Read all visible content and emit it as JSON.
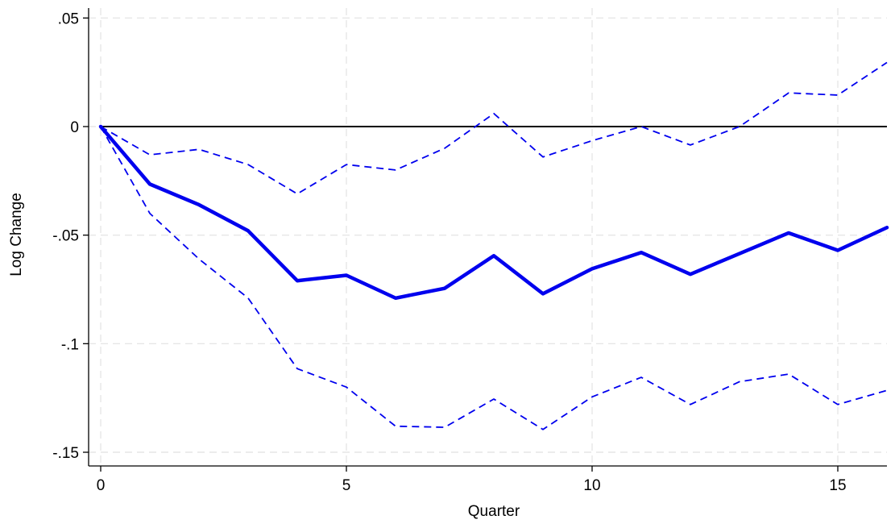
{
  "chart_data": {
    "type": "line",
    "xlabel": "Quarter",
    "ylabel": "Log Change",
    "xlim": [
      0,
      16
    ],
    "ylim": [
      -0.15,
      0.05
    ],
    "xticks": [
      0,
      5,
      10,
      15
    ],
    "xtick_labels": [
      "0",
      "5",
      "10",
      "15"
    ],
    "yticks": [
      0.05,
      0,
      -0.05,
      -0.1,
      -0.15
    ],
    "ytick_labels": [
      ".05",
      "0",
      "-.05",
      "-.1",
      "-.15"
    ],
    "grid": true,
    "x": [
      0,
      1,
      2,
      3,
      4,
      5,
      6,
      7,
      8,
      9,
      10,
      11,
      12,
      13,
      14,
      15,
      16
    ],
    "reference_line": {
      "y": 0,
      "color": "#000000"
    },
    "series": [
      {
        "role": "estimate",
        "style": "solid-thick",
        "color": "#0000ee",
        "values": [
          0,
          -0.0265,
          -0.036,
          -0.048,
          -0.071,
          -0.0685,
          -0.079,
          -0.0745,
          -0.0595,
          -0.077,
          -0.0655,
          -0.058,
          -0.068,
          -0.0585,
          -0.049,
          -0.057,
          -0.0465
        ]
      },
      {
        "role": "upper-bound",
        "style": "dashed",
        "color": "#0000ee",
        "values": [
          0,
          -0.013,
          -0.0105,
          -0.0175,
          -0.031,
          -0.0175,
          -0.02,
          -0.01,
          0.006,
          -0.014,
          -0.0065,
          0,
          -0.0085,
          0,
          0.0155,
          0.0145,
          0.0295
        ]
      },
      {
        "role": "lower-bound",
        "style": "dashed",
        "color": "#0000ee",
        "values": [
          0,
          -0.04,
          -0.061,
          -0.079,
          -0.1115,
          -0.12,
          -0.138,
          -0.1385,
          -0.1255,
          -0.1395,
          -0.1245,
          -0.1155,
          -0.128,
          -0.1175,
          -0.114,
          -0.128,
          -0.1215
        ]
      }
    ]
  }
}
